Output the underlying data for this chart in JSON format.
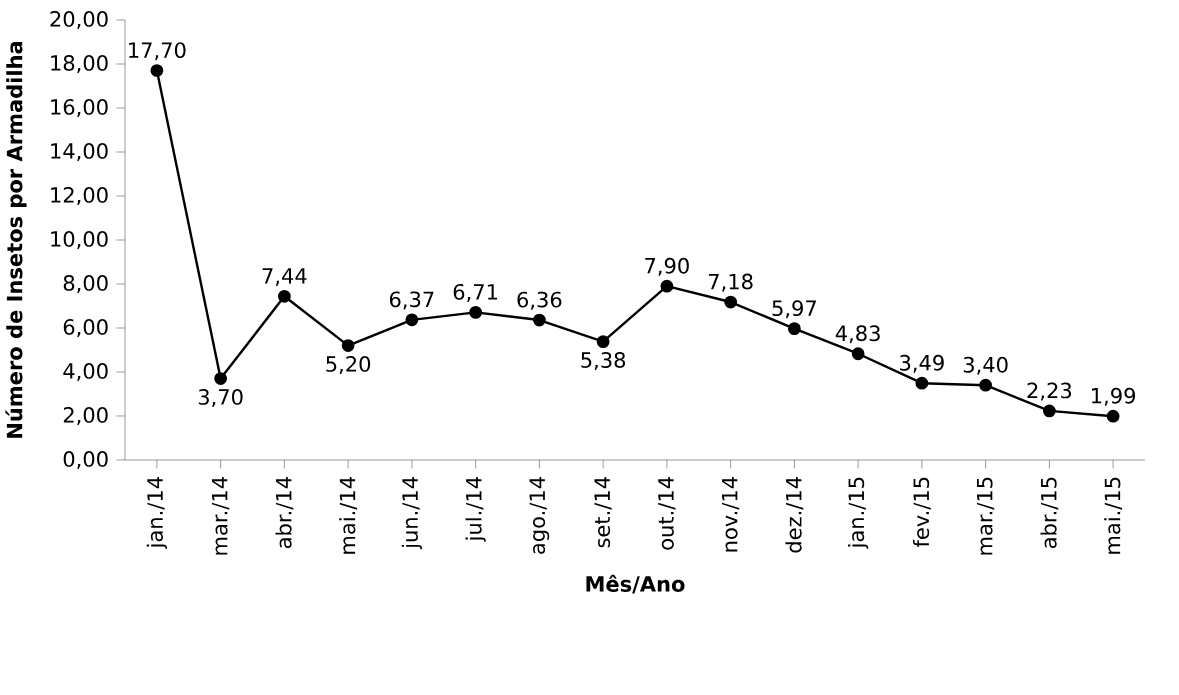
{
  "chart_data": {
    "type": "line",
    "xlabel": "Mês/Ano",
    "ylabel": "Número de Insetos por Armadilha",
    "categories": [
      "jan./14",
      "mar./14",
      "abr./14",
      "mai./14",
      "jun./14",
      "jul./14",
      "ago./14",
      "set./14",
      "out./14",
      "nov./14",
      "dez./14",
      "jan./15",
      "fev./15",
      "mar./15",
      "abr./15",
      "mai./15"
    ],
    "values": [
      17.7,
      3.7,
      7.44,
      5.2,
      6.37,
      6.71,
      6.36,
      5.38,
      7.9,
      7.18,
      5.97,
      4.83,
      3.49,
      3.4,
      2.23,
      1.99
    ],
    "value_labels": [
      "17,70",
      "3,70",
      "7,44",
      "5,20",
      "6,37",
      "6,71",
      "6,36",
      "5,38",
      "7,90",
      "7,18",
      "5,97",
      "4,83",
      "3,49",
      "3,40",
      "2,23",
      "1,99"
    ],
    "color": "#000000",
    "marker": "circle",
    "line_style": "solid",
    "grid": false,
    "ylim": [
      0,
      20
    ],
    "yticks": [
      {
        "value": 0,
        "label": "0,00"
      },
      {
        "value": 2,
        "label": "2,00"
      },
      {
        "value": 4,
        "label": "4,00"
      },
      {
        "value": 6,
        "label": "6,00"
      },
      {
        "value": 8,
        "label": "8,00"
      },
      {
        "value": 10,
        "label": "10,00"
      },
      {
        "value": 12,
        "label": "12,00"
      },
      {
        "value": 14,
        "label": "14,00"
      },
      {
        "value": 16,
        "label": "16,00"
      },
      {
        "value": 18,
        "label": "18,00"
      },
      {
        "value": 20,
        "label": "20,00"
      }
    ]
  }
}
